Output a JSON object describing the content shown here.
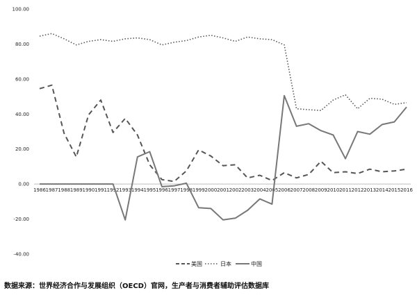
{
  "chart_data": {
    "type": "line",
    "x": [
      "1986",
      "1987",
      "1988",
      "1989",
      "1990",
      "1991",
      "1992",
      "1993",
      "1994",
      "1995",
      "1996",
      "1997",
      "1998",
      "1999",
      "2000",
      "2001",
      "2002",
      "2003",
      "2004",
      "2005",
      "2006",
      "2007",
      "2008",
      "2009",
      "2010",
      "2011",
      "2012",
      "2013",
      "2014",
      "2015",
      "2016"
    ],
    "series": [
      {
        "name": "美国",
        "style": "dashed",
        "color": "#555555",
        "values": [
          54.5,
          56.5,
          29.0,
          15.5,
          39.5,
          48.0,
          29.5,
          37.5,
          28.0,
          11.0,
          2.5,
          1.5,
          7.5,
          19.5,
          16.0,
          10.5,
          11.0,
          3.5,
          5.0,
          2.0,
          6.5,
          3.5,
          5.5,
          13.0,
          6.5,
          7.0,
          6.0,
          8.5,
          7.0,
          7.5,
          8.5
        ]
      },
      {
        "name": "日本",
        "style": "dotted",
        "color": "#555555",
        "values": [
          84.5,
          86.0,
          83.0,
          79.5,
          81.5,
          82.5,
          81.5,
          83.0,
          83.5,
          82.5,
          79.5,
          81.0,
          82.0,
          84.0,
          85.0,
          83.5,
          81.5,
          84.0,
          83.0,
          82.5,
          79.5,
          43.0,
          42.5,
          42.0,
          48.0,
          51.0,
          43.0,
          49.0,
          48.5,
          45.5,
          46.5
        ]
      },
      {
        "name": "中国",
        "style": "solid",
        "color": "#777777",
        "values": [
          0,
          0,
          0,
          0,
          0,
          0,
          0,
          -20.5,
          15.5,
          18.5,
          -1.5,
          -1.0,
          0.5,
          -13.5,
          -14.0,
          -20.5,
          -19.5,
          -15.0,
          -8.5,
          -11.5,
          50.5,
          33.0,
          34.5,
          30.5,
          28.0,
          14.5,
          30.0,
          28.5,
          34.0,
          35.5,
          44.0
        ]
      }
    ],
    "y_ticks": [
      "100.00",
      "80.00",
      "60.00",
      "40.00",
      "20.00",
      "0.00",
      "-20.00",
      "-40.00"
    ],
    "ylim": [
      -40,
      100
    ],
    "grid": false,
    "legend": "bottom-center",
    "title": "",
    "xlabel": "",
    "ylabel": ""
  },
  "source_note": "数据来源：世界经济合作与发展组织（OECD）官网，生产者与消费者辅助评估数据库"
}
